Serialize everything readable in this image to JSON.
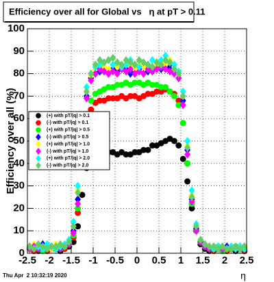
{
  "chart_data": {
    "type": "scatter",
    "title": "Efficiency over all for Global vs   η at pT > 0.11",
    "xlabel": "η",
    "ylabel": "Efficiency over all (%)",
    "footer": "Thu Apr  2 10:32:19 2020",
    "xlim": [
      -2.5,
      2.5
    ],
    "ylim": [
      0,
      100
    ],
    "xticks": [
      -2.5,
      -2,
      -1.5,
      -1,
      -0.5,
      0,
      0.5,
      1,
      1.5,
      2,
      2.5
    ],
    "yticks": [
      0,
      10,
      20,
      30,
      40,
      50,
      60,
      70,
      80,
      90,
      100
    ],
    "grid": true,
    "x": [
      -2.45,
      -2.35,
      -2.25,
      -2.15,
      -2.05,
      -1.95,
      -1.85,
      -1.75,
      -1.65,
      -1.55,
      -1.45,
      -1.35,
      -1.25,
      -1.15,
      -1.05,
      -0.95,
      -0.85,
      -0.75,
      -0.65,
      -0.55,
      -0.45,
      -0.35,
      -0.25,
      -0.15,
      -0.05,
      0.05,
      0.15,
      0.25,
      0.35,
      0.45,
      0.55,
      0.65,
      0.75,
      0.85,
      0.95,
      1.05,
      1.15,
      1.25,
      1.35,
      1.45,
      1.55,
      1.65,
      1.75,
      1.85,
      1.95,
      2.05,
      2.15,
      2.25,
      2.35,
      2.45
    ],
    "series": [
      {
        "name": "(+) with pT/|q| > 0.1",
        "color": "#000000",
        "marker": "circle",
        "values": [
          2,
          2,
          1,
          2,
          3,
          2,
          2,
          1,
          2,
          3,
          5,
          12,
          26,
          38,
          44,
          46,
          46,
          45,
          45,
          45,
          44,
          45,
          44,
          44,
          45,
          45,
          46,
          46,
          48,
          48,
          49,
          50,
          51,
          50,
          48,
          42,
          32,
          20,
          10,
          4,
          2,
          1,
          2,
          2,
          1,
          2,
          2,
          1,
          2,
          1
        ]
      },
      {
        "name": "(-) with pT/|q| > 0.1",
        "color": "#ff0000",
        "marker": "circle",
        "values": [
          2,
          1,
          2,
          3,
          1,
          2,
          2,
          3,
          2,
          4,
          7,
          18,
          40,
          58,
          64,
          67,
          68,
          68,
          69,
          69,
          69,
          70,
          69,
          70,
          70,
          69,
          70,
          71,
          71,
          72,
          72,
          73,
          72,
          71,
          68,
          58,
          40,
          22,
          10,
          5,
          3,
          2,
          1,
          2,
          2,
          1,
          2,
          3,
          2,
          1
        ]
      },
      {
        "name": "(+) with pT/|q| > 0.5",
        "color": "#00ff00",
        "marker": "circle",
        "values": [
          2,
          3,
          2,
          1,
          2,
          3,
          2,
          2,
          3,
          4,
          8,
          20,
          44,
          62,
          68,
          71,
          72,
          73,
          74,
          74,
          75,
          75,
          76,
          75,
          76,
          76,
          75,
          76,
          75,
          75,
          74,
          74,
          72,
          70,
          66,
          58,
          40,
          22,
          10,
          5,
          3,
          2,
          2,
          3,
          1,
          2,
          2,
          3,
          2,
          2
        ]
      },
      {
        "name": "(-) with pT/|q| > 0.5",
        "color": "#0000ff",
        "marker": "diamond",
        "values": [
          3,
          2,
          2,
          4,
          2,
          3,
          2,
          3,
          3,
          5,
          10,
          24,
          50,
          70,
          78,
          80,
          81,
          82,
          80,
          82,
          81,
          83,
          82,
          80,
          81,
          82,
          80,
          81,
          82,
          83,
          82,
          84,
          83,
          81,
          78,
          68,
          46,
          24,
          11,
          5,
          3,
          2,
          3,
          2,
          2,
          3,
          2,
          2,
          3,
          2
        ]
      },
      {
        "name": "(+) with pT/|q| > 1.0",
        "color": "#ffff00",
        "marker": "diamond",
        "values": [
          2,
          4,
          3,
          2,
          3,
          2,
          4,
          3,
          4,
          5,
          12,
          28,
          54,
          72,
          79,
          82,
          84,
          83,
          82,
          84,
          83,
          82,
          84,
          83,
          82,
          84,
          83,
          82,
          83,
          84,
          85,
          84,
          86,
          83,
          80,
          70,
          48,
          26,
          12,
          6,
          4,
          3,
          3,
          2,
          3,
          2,
          3,
          2,
          2,
          3
        ]
      },
      {
        "name": "(-) with pT/|q| > 1.0",
        "color": "#ff00ff",
        "marker": "diamond",
        "values": [
          2,
          3,
          2,
          3,
          2,
          3,
          3,
          2,
          3,
          4,
          9,
          22,
          48,
          69,
          77,
          80,
          82,
          81,
          80,
          81,
          80,
          82,
          81,
          82,
          80,
          81,
          80,
          82,
          81,
          82,
          83,
          82,
          81,
          80,
          78,
          66,
          44,
          23,
          10,
          5,
          3,
          2,
          2,
          3,
          2,
          2,
          3,
          2,
          2,
          3
        ]
      },
      {
        "name": "(+) with pT/|q| > 2.0",
        "color": "#00ffff",
        "marker": "diamond",
        "values": [
          3,
          2,
          3,
          2,
          4,
          3,
          2,
          3,
          4,
          6,
          14,
          30,
          56,
          74,
          80,
          83,
          84,
          85,
          86,
          84,
          85,
          83,
          84,
          86,
          84,
          83,
          85,
          84,
          86,
          85,
          86,
          88,
          85,
          84,
          81,
          72,
          50,
          28,
          13,
          6,
          4,
          3,
          2,
          3,
          3,
          2,
          3,
          2,
          3,
          2
        ]
      },
      {
        "name": "(-) with pT/|q| > 2.0",
        "color": "#66cc66",
        "marker": "diamond",
        "values": [
          3,
          2,
          4,
          3,
          2,
          3,
          3,
          4,
          3,
          5,
          12,
          27,
          52,
          72,
          80,
          84,
          86,
          85,
          86,
          87,
          85,
          84,
          86,
          85,
          84,
          86,
          85,
          84,
          83,
          85,
          84,
          86,
          85,
          82,
          80,
          70,
          47,
          25,
          12,
          6,
          4,
          3,
          3,
          2,
          3,
          2,
          2,
          3,
          2,
          3
        ]
      }
    ]
  }
}
